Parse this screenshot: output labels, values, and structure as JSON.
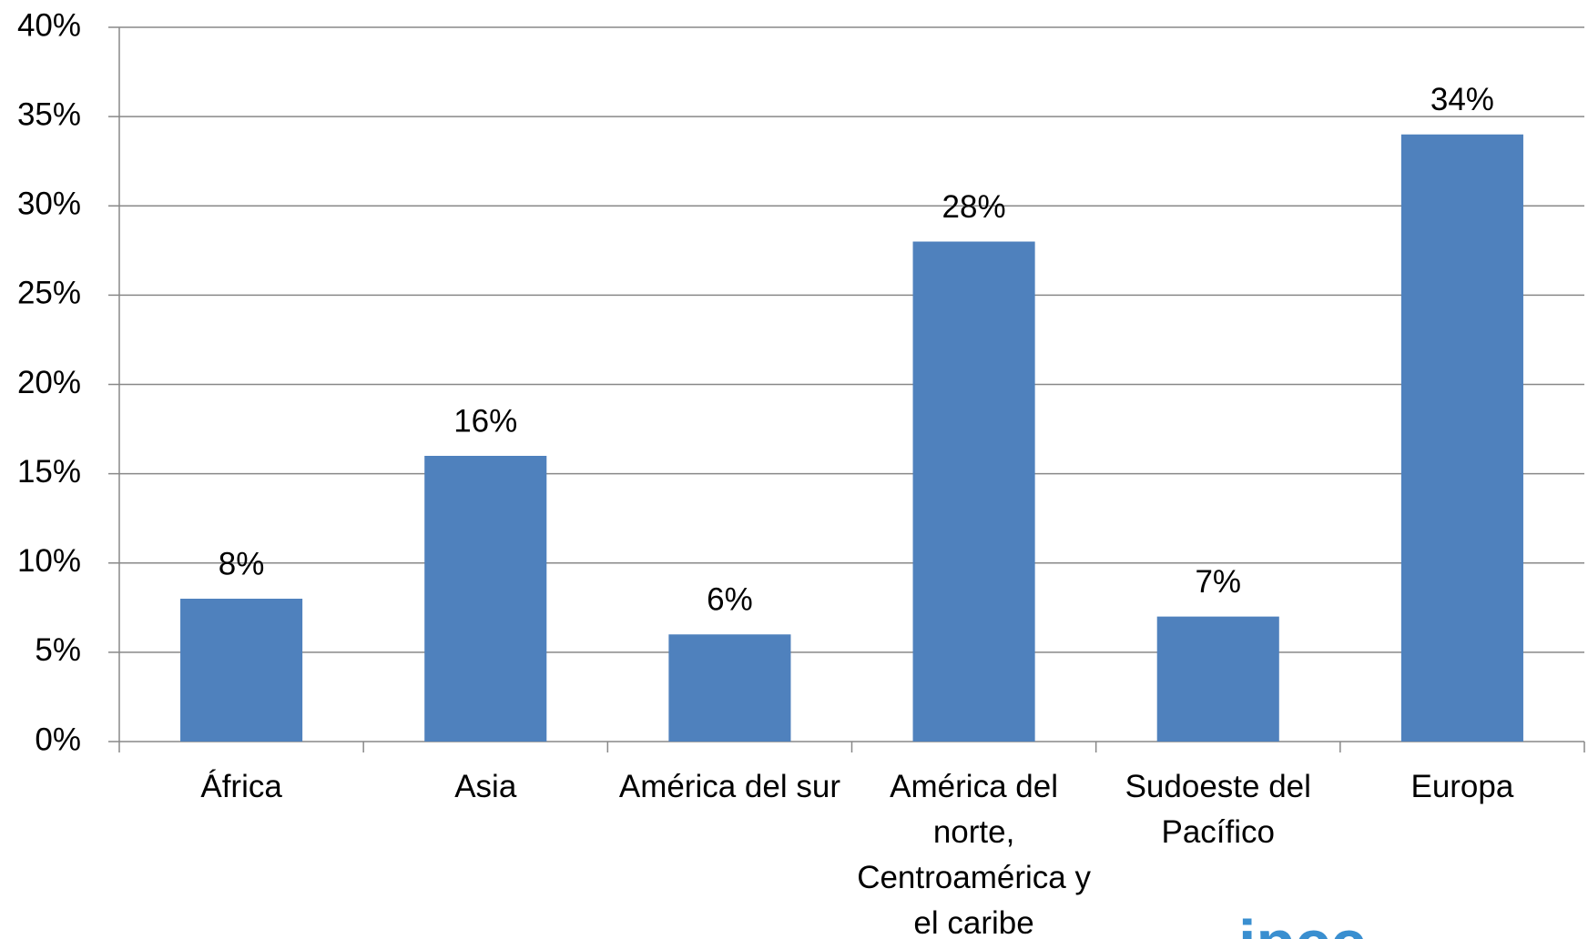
{
  "chart_data": {
    "type": "bar",
    "categories": [
      "África",
      "Asia",
      "América del sur",
      "América del norte, Centroamérica y el caribe",
      "Sudoeste del Pacífico",
      "Europa"
    ],
    "values": [
      8,
      16,
      6,
      28,
      7,
      34
    ],
    "value_labels": [
      "8%",
      "16%",
      "6%",
      "28%",
      "7%",
      "34%"
    ],
    "color": "#4f81bd",
    "ylim": [
      0,
      40
    ],
    "yticks": [
      {
        "value": 0,
        "label": "0%"
      },
      {
        "value": 5,
        "label": "5%"
      },
      {
        "value": 10,
        "label": "10%"
      },
      {
        "value": 15,
        "label": "15%"
      },
      {
        "value": 20,
        "label": "20%"
      },
      {
        "value": 25,
        "label": "25%"
      },
      {
        "value": 30,
        "label": "30%"
      },
      {
        "value": 35,
        "label": "35%"
      },
      {
        "value": 40,
        "label": "40%"
      }
    ],
    "grid": true
  },
  "logo": "ipcc"
}
